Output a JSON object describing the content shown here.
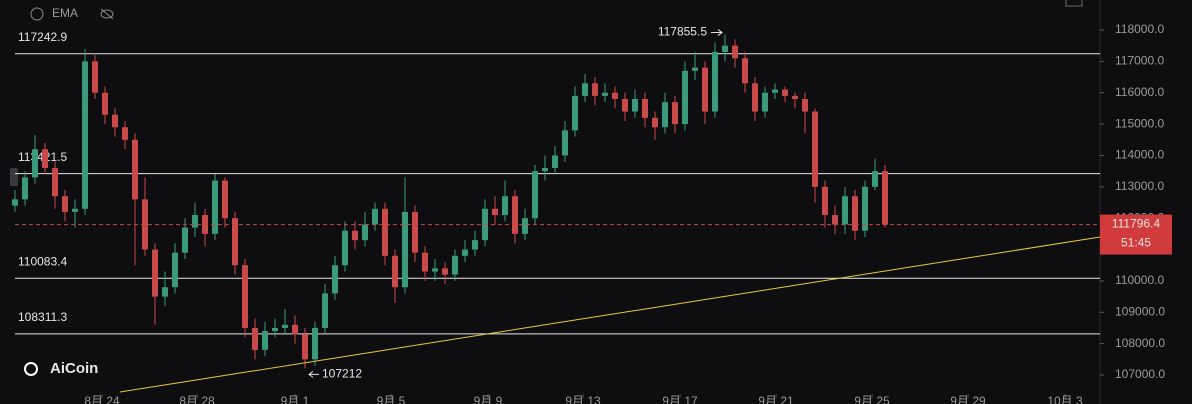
{
  "toolbar": {
    "indicator": "EMA"
  },
  "logo": "AiCoin",
  "chart_data": {
    "type": "candlestick",
    "x": [
      0,
      1,
      2,
      3,
      4,
      5,
      6,
      7,
      8,
      9,
      10,
      11,
      12,
      13,
      14,
      15,
      16,
      17,
      18,
      19,
      20,
      21,
      22,
      23,
      24,
      25,
      26,
      27,
      28,
      29,
      30,
      31,
      32,
      33,
      34,
      35,
      36,
      37,
      38,
      39,
      40,
      41,
      42,
      43,
      44,
      45,
      46,
      47,
      48,
      49,
      50,
      51,
      52,
      53,
      54,
      55,
      56,
      57,
      58,
      59,
      60,
      61,
      62,
      63,
      64,
      65,
      66,
      67,
      68,
      69,
      70,
      71,
      72,
      73,
      74,
      75,
      76,
      77,
      78,
      79,
      80,
      81,
      82,
      83,
      84,
      85,
      86,
      87
    ],
    "open": [
      112400,
      112600,
      113300,
      114200,
      113600,
      112700,
      112200,
      112300,
      117000,
      116000,
      115300,
      114900,
      114500,
      112600,
      111000,
      109500,
      109800,
      110900,
      111700,
      112100,
      111500,
      113200,
      112000,
      110500,
      108500,
      107800,
      108400,
      108500,
      108600,
      108300,
      107500,
      108500,
      109600,
      110500,
      111600,
      111300,
      111800,
      112300,
      110800,
      109800,
      112200,
      110900,
      110300,
      110400,
      110200,
      110800,
      111000,
      111300,
      112300,
      112100,
      112700,
      111500,
      112000,
      113500,
      113600,
      114000,
      114800,
      115900,
      116300,
      115900,
      116000,
      115800,
      115400,
      115800,
      115200,
      114900,
      115700,
      115000,
      116700,
      116800,
      115400,
      117300,
      117500,
      117100,
      116300,
      115400,
      116000,
      116100,
      115900,
      115800,
      115400,
      113000,
      112100,
      111800,
      112700,
      111600,
      113000,
      113500
    ],
    "high": [
      112900,
      113500,
      114650,
      114400,
      113800,
      112900,
      112600,
      117400,
      117200,
      116200,
      115500,
      115100,
      114700,
      113300,
      111200,
      110300,
      111200,
      112000,
      112500,
      112300,
      113400,
      113300,
      112200,
      110700,
      108800,
      108700,
      108800,
      109100,
      108900,
      108500,
      108700,
      109900,
      110800,
      111900,
      111900,
      112200,
      112500,
      112500,
      111000,
      113300,
      112400,
      111100,
      110700,
      110600,
      111000,
      111300,
      111600,
      112600,
      112700,
      113200,
      112900,
      112300,
      113700,
      114000,
      114300,
      115100,
      116200,
      116600,
      116500,
      116300,
      116200,
      116000,
      116100,
      116000,
      115400,
      116000,
      115900,
      117000,
      117300,
      117000,
      117600,
      117855.5,
      117700,
      117300,
      116500,
      116200,
      116300,
      116200,
      116000,
      116000,
      115500,
      113200,
      112400,
      113000,
      112900,
      113200,
      113900,
      113700
    ],
    "low": [
      112200,
      112400,
      113100,
      113400,
      112300,
      111900,
      111700,
      112100,
      115800,
      115000,
      114600,
      114200,
      110500,
      110800,
      108600,
      109200,
      109600,
      110700,
      111400,
      111100,
      111300,
      111700,
      110200,
      108200,
      107500,
      107600,
      108200,
      108300,
      108000,
      107212.0,
      107300,
      108300,
      109400,
      110300,
      111000,
      111100,
      111600,
      110500,
      109300,
      109600,
      110600,
      110000,
      110000,
      109900,
      110000,
      110600,
      110800,
      111100,
      111800,
      111900,
      111200,
      111300,
      111800,
      113200,
      113400,
      113800,
      114600,
      115700,
      115600,
      115700,
      115500,
      115100,
      115200,
      114900,
      114500,
      114700,
      114700,
      114800,
      116400,
      115000,
      115200,
      117000,
      116800,
      116000,
      115100,
      115200,
      115800,
      115700,
      115500,
      114700,
      112500,
      111700,
      111500,
      111500,
      111300,
      111400,
      112900,
      111700
    ],
    "close": [
      112600,
      113300,
      114200,
      113600,
      112700,
      112200,
      112300,
      117000,
      116000,
      115300,
      114900,
      114500,
      112600,
      111000,
      109500,
      109800,
      110900,
      111700,
      112100,
      111500,
      113200,
      112000,
      110500,
      108500,
      107800,
      108400,
      108500,
      108600,
      108300,
      107500,
      108500,
      109600,
      110500,
      111600,
      111300,
      111800,
      112300,
      110800,
      109800,
      112200,
      110900,
      110300,
      110400,
      110200,
      110800,
      111000,
      111300,
      112300,
      112100,
      112700,
      111500,
      112000,
      113500,
      113600,
      114000,
      114800,
      115900,
      116300,
      115900,
      116000,
      115800,
      115400,
      115800,
      115200,
      114900,
      115700,
      115000,
      116700,
      116800,
      115400,
      117300,
      117500,
      117100,
      116300,
      115400,
      116000,
      116100,
      115900,
      115800,
      115400,
      113000,
      112100,
      111800,
      112700,
      111600,
      113000,
      113500,
      111796.4
    ],
    "up_color": "#3a9a7a",
    "down_color": "#c94a4a",
    "levels": [
      117242.9,
      113421.5,
      110083.4,
      108311.3
    ],
    "countdown": "51:45",
    "trendline": {
      "x": [
        10.5,
        108.5
      ],
      "y": [
        106457,
        111399
      ],
      "color": "#e8c93a"
    },
    "xlim": [
      -1.5,
      108.5
    ],
    "ylim": [
      106075,
      118957
    ],
    "xticks": [
      {
        "value": 8.7,
        "label": "8月 24"
      },
      {
        "value": 18.2,
        "label": "8月 28"
      },
      {
        "value": 28,
        "label": "9月 1"
      },
      {
        "value": 37.6,
        "label": "9月 5"
      },
      {
        "value": 47.3,
        "label": "9月 9"
      },
      {
        "value": 56.8,
        "label": "9月 13"
      },
      {
        "value": 66.5,
        "label": "9月 17"
      },
      {
        "value": 76.1,
        "label": "9月 21"
      },
      {
        "value": 85.7,
        "label": "9月 25"
      },
      {
        "value": 95.3,
        "label": "9月 29"
      },
      {
        "value": 105,
        "label": "10月 3"
      }
    ],
    "yticks": [
      {
        "value": 107000,
        "label": "107000.0"
      },
      {
        "value": 108000,
        "label": "108000.0"
      },
      {
        "value": 109000,
        "label": "109000.0"
      },
      {
        "value": 110000,
        "label": "110000.0"
      },
      {
        "value": 111000,
        "label": "111000.0"
      },
      {
        "value": 112000,
        "label": "112000.0"
      },
      {
        "value": 113000,
        "label": "113000.0"
      },
      {
        "value": 114000,
        "label": "114000.0"
      },
      {
        "value": 115000,
        "label": "115000.0"
      },
      {
        "value": 116000,
        "label": "116000.0"
      },
      {
        "value": 117000,
        "label": "117000.0"
      },
      {
        "value": 118000,
        "label": "118000.0"
      }
    ]
  }
}
